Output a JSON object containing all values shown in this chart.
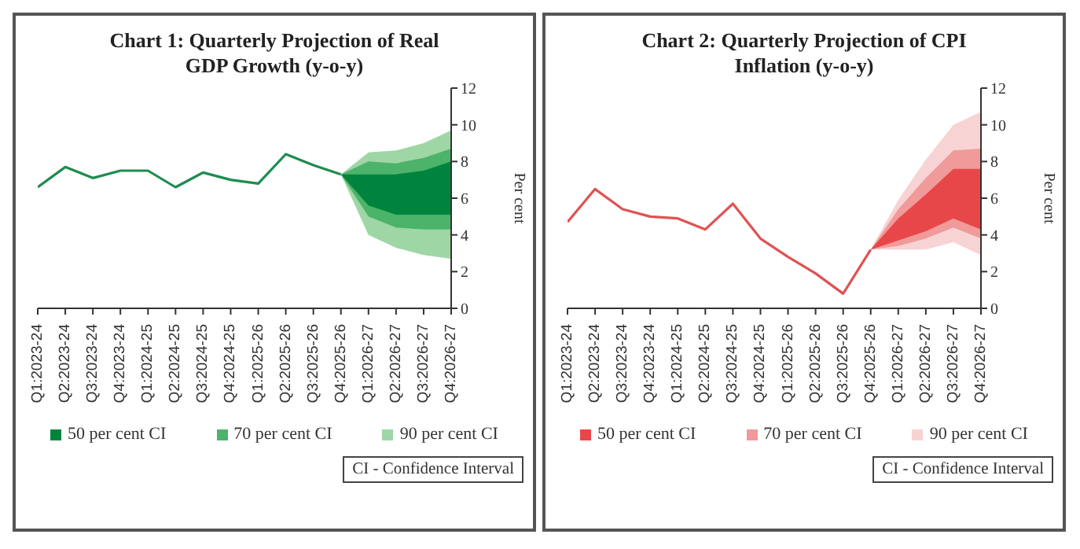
{
  "chart_data": [
    {
      "type": "line",
      "title": "Chart 1: Quarterly Projection of Real GDP Growth (y-o-y)",
      "ylabel": "Per cent",
      "categories": [
        "Q1:2023-24",
        "Q2:2023-24",
        "Q3:2023-24",
        "Q4:2023-24",
        "Q1:2024-25",
        "Q2:2024-25",
        "Q3:2024-25",
        "Q4:2024-25",
        "Q1:2025-26",
        "Q2:2025-26",
        "Q3:2025-26",
        "Q4:2025-26",
        "Q1:2026-27",
        "Q2:2026-27",
        "Q3:2026-27",
        "Q4:2026-27"
      ],
      "series": [
        {
          "color": "#1e8c4e",
          "values": [
            6.6,
            7.7,
            7.1,
            7.5,
            7.5,
            6.6,
            7.4,
            7.0,
            6.8,
            8.4,
            7.8,
            7.3,
            null,
            null,
            null,
            null
          ]
        },
        {
          "name": "90 per cent CI",
          "type": "area",
          "color": "#9fd6a6",
          "values": [
            null,
            null,
            null,
            null,
            null,
            null,
            null,
            null,
            null,
            null,
            null,
            null,
            null,
            null,
            null,
            null
          ],
          "lower": [
            null,
            null,
            null,
            null,
            null,
            null,
            null,
            null,
            null,
            null,
            null,
            7.3,
            4.0,
            3.3,
            2.9,
            2.7
          ],
          "upper": [
            null,
            null,
            null,
            null,
            null,
            null,
            null,
            null,
            null,
            null,
            null,
            7.3,
            8.5,
            8.6,
            9.0,
            9.7
          ]
        },
        {
          "name": "70 per cent CI",
          "type": "area",
          "color": "#4cb36a",
          "values": [
            null,
            null,
            null,
            null,
            null,
            null,
            null,
            null,
            null,
            null,
            null,
            null,
            null,
            null,
            null,
            null
          ],
          "lower": [
            null,
            null,
            null,
            null,
            null,
            null,
            null,
            null,
            null,
            null,
            null,
            7.3,
            5.0,
            4.4,
            4.3,
            4.3
          ],
          "upper": [
            null,
            null,
            null,
            null,
            null,
            null,
            null,
            null,
            null,
            null,
            null,
            7.3,
            8.0,
            7.9,
            8.2,
            8.7
          ]
        },
        {
          "name": "50 per cent CI",
          "type": "area",
          "color": "#00843d",
          "values": [
            null,
            null,
            null,
            null,
            null,
            null,
            null,
            null,
            null,
            null,
            null,
            null,
            null,
            null,
            null,
            null
          ],
          "lower": [
            null,
            null,
            null,
            null,
            null,
            null,
            null,
            null,
            null,
            null,
            null,
            7.3,
            5.6,
            5.1,
            5.1,
            5.1
          ],
          "upper": [
            null,
            null,
            null,
            null,
            null,
            null,
            null,
            null,
            null,
            null,
            null,
            7.3,
            7.3,
            7.3,
            7.5,
            8.0
          ]
        }
      ],
      "ylim": [
        0,
        12
      ],
      "yticks": [
        0,
        2,
        4,
        6,
        8,
        10,
        12
      ],
      "grid": false,
      "legend": "bottom",
      "marker": "none",
      "annotations": [
        "CI - Confidence Interval"
      ]
    },
    {
      "type": "line",
      "title": "Chart 2: Quarterly Projection of CPI Inflation (y-o-y)",
      "ylabel": "Per cent",
      "categories": [
        "Q1:2023-24",
        "Q2:2023-24",
        "Q3:2023-24",
        "Q4:2023-24",
        "Q1:2024-25",
        "Q2:2024-25",
        "Q3:2024-25",
        "Q4:2024-25",
        "Q1:2025-26",
        "Q2:2025-26",
        "Q3:2025-26",
        "Q4:2025-26",
        "Q1:2026-27",
        "Q2:2026-27",
        "Q3:2026-27",
        "Q4:2026-27"
      ],
      "series": [
        {
          "color": "#e05252",
          "values": [
            4.7,
            6.5,
            5.4,
            5.0,
            4.9,
            4.3,
            5.7,
            3.8,
            2.8,
            1.9,
            0.8,
            3.2,
            null,
            null,
            null,
            null
          ]
        },
        {
          "name": "90 per cent CI",
          "type": "area",
          "color": "#f8d3d3",
          "values": [
            null,
            null,
            null,
            null,
            null,
            null,
            null,
            null,
            null,
            null,
            null,
            null,
            null,
            null,
            null,
            null
          ],
          "lower": [
            null,
            null,
            null,
            null,
            null,
            null,
            null,
            null,
            null,
            null,
            null,
            3.2,
            3.2,
            3.2,
            3.6,
            2.9
          ],
          "upper": [
            null,
            null,
            null,
            null,
            null,
            null,
            null,
            null,
            null,
            null,
            null,
            3.2,
            5.9,
            8.1,
            10.0,
            10.7
          ]
        },
        {
          "name": "70 per cent CI",
          "type": "area",
          "color": "#f09a9a",
          "values": [
            null,
            null,
            null,
            null,
            null,
            null,
            null,
            null,
            null,
            null,
            null,
            null,
            null,
            null,
            null,
            null
          ],
          "lower": [
            null,
            null,
            null,
            null,
            null,
            null,
            null,
            null,
            null,
            null,
            null,
            3.2,
            3.4,
            3.8,
            4.4,
            3.8
          ],
          "upper": [
            null,
            null,
            null,
            null,
            null,
            null,
            null,
            null,
            null,
            null,
            null,
            3.2,
            5.4,
            7.1,
            8.6,
            8.7
          ]
        },
        {
          "name": "50 per cent CI",
          "type": "area",
          "color": "#e8474a",
          "values": [
            null,
            null,
            null,
            null,
            null,
            null,
            null,
            null,
            null,
            null,
            null,
            null,
            null,
            null,
            null,
            null
          ],
          "lower": [
            null,
            null,
            null,
            null,
            null,
            null,
            null,
            null,
            null,
            null,
            null,
            3.2,
            3.7,
            4.2,
            4.9,
            4.3
          ],
          "upper": [
            null,
            null,
            null,
            null,
            null,
            null,
            null,
            null,
            null,
            null,
            null,
            3.2,
            4.9,
            6.2,
            7.6,
            7.6
          ]
        }
      ],
      "ylim": [
        0,
        12
      ],
      "yticks": [
        0,
        2,
        4,
        6,
        8,
        10,
        12
      ],
      "grid": false,
      "legend": "bottom",
      "marker": "none",
      "annotations": [
        "CI - Confidence Interval"
      ]
    }
  ]
}
